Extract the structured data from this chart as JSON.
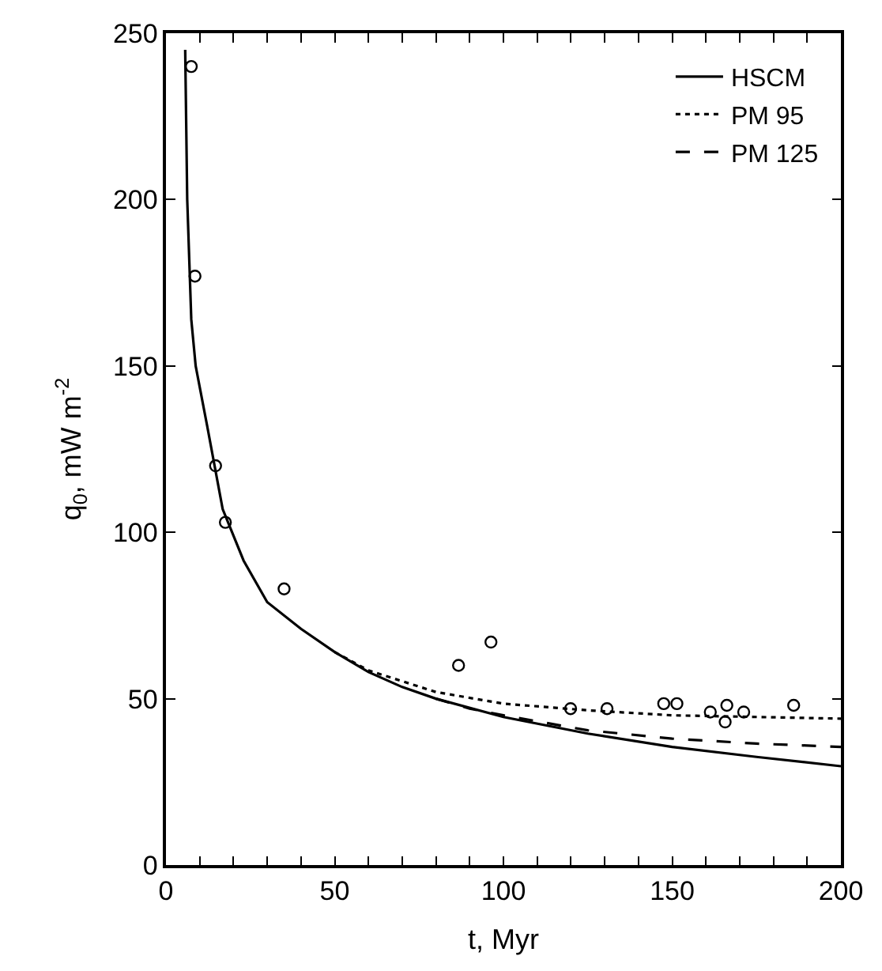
{
  "chart_data": {
    "type": "line",
    "xlabel": "t, Myr",
    "ylabel": "q$_{0}$, mW m$^{-2}$",
    "xlim": [
      0,
      200
    ],
    "ylim": [
      0,
      250
    ],
    "xticks": [
      0,
      {
        "value": 10,
        "label": null
      },
      {
        "value": 20,
        "label": null
      },
      {
        "value": 30,
        "label": null
      },
      {
        "value": 40,
        "label": null
      },
      50,
      {
        "value": 60,
        "label": null
      },
      {
        "value": 70,
        "label": null
      },
      {
        "value": 80,
        "label": null
      },
      {
        "value": 90,
        "label": null
      },
      100,
      {
        "value": 110,
        "label": null
      },
      {
        "value": 120,
        "label": null
      },
      {
        "value": 130,
        "label": null
      },
      {
        "value": 140,
        "label": null
      },
      150,
      {
        "value": 160,
        "label": null
      },
      {
        "value": 170,
        "label": null
      },
      {
        "value": 180,
        "label": null
      },
      {
        "value": 190,
        "label": null
      },
      200
    ],
    "yticks": [
      0,
      50,
      100,
      150,
      200,
      250
    ],
    "legend": "top right",
    "series": [
      {
        "name": "HSCM",
        "line_style": "solid",
        "color": "#000000",
        "x": [
          5.7,
          6.3,
          7.5,
          8.8,
          12.2,
          16.8,
          23,
          30,
          40,
          50,
          60,
          70,
          80,
          100,
          125,
          150,
          175,
          200
        ],
        "values": [
          245,
          200,
          164,
          150,
          132,
          107,
          91.5,
          79,
          71,
          64,
          58,
          53.5,
          50,
          44.5,
          39.5,
          35.5,
          32.5,
          29.7
        ]
      },
      {
        "name": "PM 95",
        "line_style": "dotted",
        "color": "#000000",
        "x": [
          50,
          60,
          80,
          100,
          125,
          150,
          175,
          200
        ],
        "values": [
          64,
          58.5,
          52,
          48.5,
          46.5,
          45,
          44.5,
          44
        ]
      },
      {
        "name": "PM 125",
        "line_style": "dashed",
        "color": "#000000",
        "x": [
          80,
          90,
          100,
          125,
          150,
          175,
          200
        ],
        "values": [
          50,
          47,
          45,
          40.5,
          38,
          36.5,
          35.5
        ]
      },
      {
        "type": "scatter",
        "marker": "circle",
        "color": "#000000",
        "x": [
          7.5,
          8.6,
          14.7,
          17.6,
          35,
          86.7,
          96.3,
          119.9,
          130.7,
          147.5,
          151.4,
          161.3,
          166.2,
          165.7,
          171.2,
          186
        ],
        "values": [
          240,
          177,
          120,
          103,
          83,
          60,
          67,
          47,
          47,
          48.5,
          48.5,
          46,
          48,
          43,
          46,
          48
        ]
      }
    ]
  }
}
